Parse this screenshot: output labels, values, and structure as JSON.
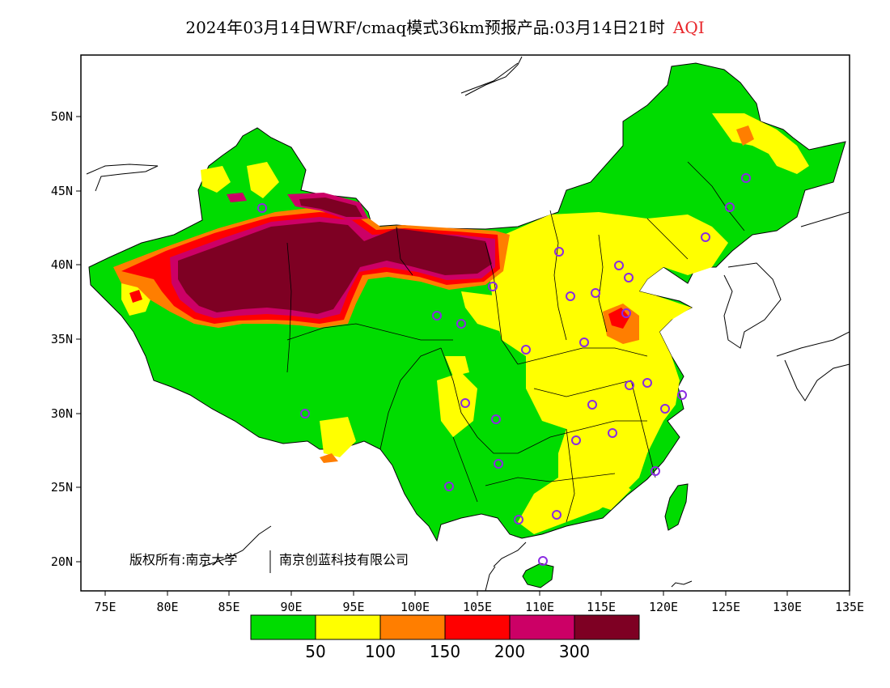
{
  "title": {
    "text": "2024年03月14日WRF/cmaq模式36km预报产品:03月14日21时",
    "highlight": "AQI",
    "highlight_color": "#e8262a"
  },
  "axes": {
    "lon_ticks": [
      "75E",
      "80E",
      "85E",
      "90E",
      "95E",
      "100E",
      "105E",
      "110E",
      "115E",
      "120E",
      "125E",
      "130E",
      "135E"
    ],
    "lat_ticks": [
      "50N",
      "45N",
      "40N",
      "35N",
      "30N",
      "25N",
      "20N"
    ]
  },
  "credit": {
    "left": "版权所有:南京大学",
    "right": "南京创蓝科技有限公司"
  },
  "legend": {
    "colors": [
      "#00dc00",
      "#ffff00",
      "#ff7e00",
      "#ff0000",
      "#cc0066",
      "#7e0023"
    ],
    "labels": [
      "50",
      "100",
      "150",
      "200",
      "300"
    ]
  },
  "colors": {
    "land_unpolluted": "#ffffff",
    "outline": "#000000",
    "station_marker": "#8a2be2"
  }
}
